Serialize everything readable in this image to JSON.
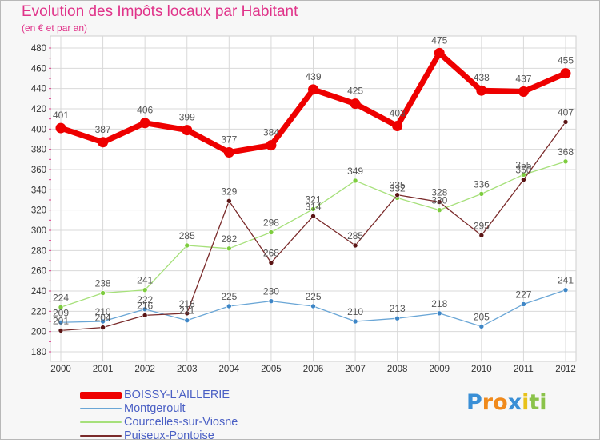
{
  "title": "Evolution des Impôts locaux par Habitant",
  "subtitle": "(en € et par an)",
  "logo": {
    "letters": [
      "P",
      "r",
      "o",
      "x",
      "i",
      "t",
      "i"
    ],
    "colors": [
      "#3a8fd6",
      "#f08a1c",
      "#f08a1c",
      "#3a8fd6",
      "#e8c21a",
      "#8bc34a",
      "#8bc34a"
    ]
  },
  "chart_data": {
    "type": "line",
    "title": "Evolution des Impôts locaux par Habitant",
    "ylabel": "(en € et par an)",
    "x": [
      "2000",
      "2001",
      "2002",
      "2003",
      "2004",
      "2005",
      "2006",
      "2007",
      "2008",
      "2009",
      "2010",
      "2011",
      "2012"
    ],
    "yticks": [
      "180",
      "200",
      "220",
      "240",
      "260",
      "280",
      "300",
      "320",
      "340",
      "360",
      "380",
      "400",
      "420",
      "440",
      "460",
      "480"
    ],
    "ylim": [
      180,
      480
    ],
    "grid": true,
    "series": [
      {
        "name": "BOISSY-L'AILLERIE",
        "color": "#ee0000",
        "marker": "#ee0000",
        "width": 7,
        "values": [
          401,
          387,
          406,
          399,
          377,
          384,
          439,
          425,
          403,
          475,
          438,
          437,
          455
        ],
        "labels": [
          "401",
          "387",
          "406",
          "399",
          "377",
          "384",
          "439",
          "425",
          "403",
          "475",
          "438",
          "437",
          "455"
        ]
      },
      {
        "name": "Montgeroult",
        "color": "#6aa6d6",
        "marker": "#3e86c6",
        "width": 1.3,
        "values": [
          209,
          210,
          222,
          211,
          225,
          230,
          225,
          210,
          213,
          218,
          205,
          227,
          241
        ],
        "labels": [
          "209",
          "210",
          "222",
          "211",
          "225",
          "230",
          "225",
          "210",
          "213",
          "218",
          "205",
          "227",
          "241"
        ]
      },
      {
        "name": "Courcelles-sur-Viosne",
        "color": "#a6e07a",
        "marker": "#7dcc3e",
        "width": 1.3,
        "values": [
          224,
          238,
          241,
          285,
          282,
          298,
          321,
          349,
          332,
          320,
          336,
          355,
          368
        ],
        "labels": [
          "224",
          "238",
          "241",
          "285",
          "282",
          "298",
          "321",
          "349",
          "332",
          "320",
          "336",
          "355",
          "368"
        ]
      },
      {
        "name": "Puiseux-Pontoise",
        "color": "#7a2a2a",
        "marker": "#5a1414",
        "width": 1.3,
        "values": [
          201,
          204,
          216,
          218,
          329,
          268,
          314,
          285,
          335,
          328,
          295,
          350,
          407
        ],
        "labels": [
          "201",
          "204",
          "216",
          "218",
          "329",
          "268",
          "314",
          "285",
          "335",
          "328",
          "295",
          "350",
          "407"
        ]
      }
    ]
  }
}
